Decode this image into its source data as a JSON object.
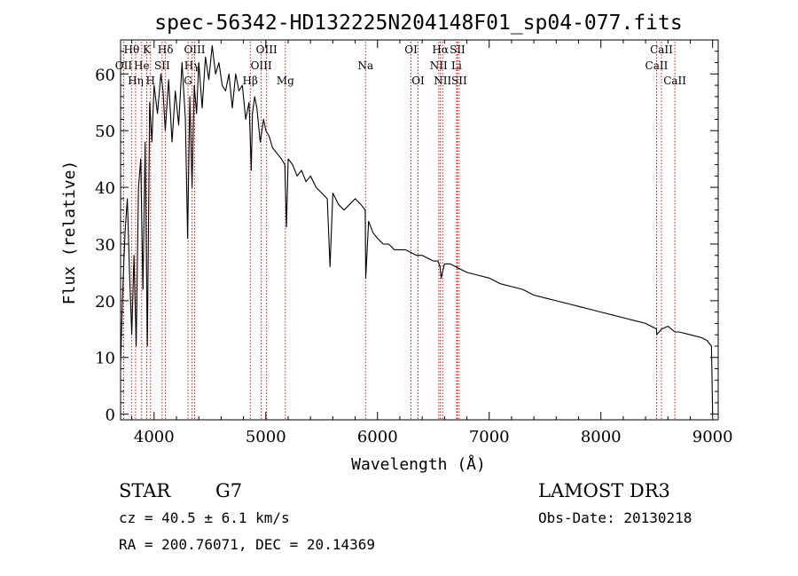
{
  "chart_data": {
    "type": "line",
    "title": "spec-56342-HD132225N204148F01_sp04-077.fits",
    "xlabel": "Wavelength (Å)",
    "ylabel": "Flux (relative)",
    "xlim": [
      3700,
      9050
    ],
    "ylim": [
      -1,
      66
    ],
    "xticks": [
      4000,
      5000,
      6000,
      7000,
      8000,
      9000
    ],
    "yticks": [
      0,
      10,
      20,
      30,
      40,
      50,
      60
    ],
    "grid": false,
    "series": [
      {
        "name": "spectrum",
        "x": [
          3700,
          3720,
          3740,
          3760,
          3780,
          3800,
          3820,
          3840,
          3860,
          3880,
          3900,
          3920,
          3940,
          3960,
          3980,
          4000,
          4030,
          4060,
          4080,
          4100,
          4130,
          4160,
          4190,
          4220,
          4250,
          4280,
          4300,
          4320,
          4340,
          4360,
          4380,
          4400,
          4430,
          4460,
          4490,
          4520,
          4550,
          4580,
          4610,
          4640,
          4670,
          4700,
          4730,
          4760,
          4790,
          4820,
          4850,
          4870,
          4880,
          4900,
          4920,
          4950,
          4980,
          5000,
          5030,
          5060,
          5100,
          5140,
          5170,
          5185,
          5200,
          5240,
          5280,
          5320,
          5360,
          5400,
          5450,
          5500,
          5550,
          5575,
          5600,
          5650,
          5700,
          5750,
          5800,
          5850,
          5890,
          5895,
          5920,
          5960,
          6000,
          6050,
          6100,
          6150,
          6200,
          6250,
          6300,
          6350,
          6400,
          6450,
          6500,
          6540,
          6560,
          6570,
          6600,
          6650,
          6700,
          6750,
          6800,
          6900,
          7000,
          7100,
          7200,
          7300,
          7400,
          7500,
          7600,
          7700,
          7800,
          7900,
          8000,
          8100,
          8200,
          8300,
          8400,
          8498,
          8500,
          8542,
          8600,
          8662,
          8700,
          8800,
          8900,
          8950,
          8990,
          9000
        ],
        "y": [
          9,
          22,
          32,
          38,
          25,
          14,
          28,
          12,
          40,
          45,
          22,
          48,
          12,
          55,
          48,
          58,
          53,
          60,
          57,
          50,
          59,
          48,
          57,
          51,
          62,
          52,
          31,
          56,
          40,
          58,
          53,
          62,
          54,
          63,
          59,
          65,
          60,
          62,
          58,
          57,
          60,
          54,
          60,
          57,
          58,
          52,
          55,
          43,
          53,
          56,
          54,
          48,
          52,
          50,
          49,
          47,
          46,
          45,
          44,
          33,
          45,
          44,
          42,
          43,
          41,
          42,
          40,
          39,
          38,
          26,
          39,
          37,
          36,
          37,
          38,
          37,
          36,
          24,
          34,
          32,
          31,
          30,
          30,
          29,
          29,
          29,
          28.5,
          28,
          28,
          27.5,
          27,
          27,
          26,
          24,
          26.5,
          26.5,
          26,
          25.5,
          25,
          24.5,
          24,
          23,
          22.5,
          22,
          21,
          20.5,
          20,
          19.5,
          19,
          18.5,
          18,
          17.5,
          17,
          16.5,
          16,
          15,
          14,
          15,
          15.5,
          14.5,
          14.5,
          14,
          13.5,
          13,
          12,
          0
        ]
      }
    ],
    "lines": [
      {
        "label": "Hθ",
        "wavelength": 3798,
        "row": 1
      },
      {
        "label": "OII",
        "wavelength": 3727,
        "row": 2
      },
      {
        "label": "Hη",
        "wavelength": 3835,
        "row": 3
      },
      {
        "label": "He",
        "wavelength": 3889,
        "row": 2
      },
      {
        "label": "K",
        "wavelength": 3934,
        "row": 1
      },
      {
        "label": "SII",
        "wavelength": 4072,
        "row": 2
      },
      {
        "label": "H",
        "wavelength": 3968,
        "row": 3
      },
      {
        "label": "Hδ",
        "wavelength": 4102,
        "row": 1
      },
      {
        "label": "G",
        "wavelength": 4304,
        "row": 3
      },
      {
        "label": "Hγ",
        "wavelength": 4340,
        "row": 2
      },
      {
        "label": "OIII",
        "wavelength": 4363,
        "row": 1
      },
      {
        "label": "Hβ",
        "wavelength": 4861,
        "row": 3
      },
      {
        "label": "OIII",
        "wavelength": 4959,
        "row": 2
      },
      {
        "label": "OIII",
        "wavelength": 5007,
        "row": 1
      },
      {
        "label": "Mg",
        "wavelength": 5175,
        "row": 3
      },
      {
        "label": "Na",
        "wavelength": 5893,
        "row": 2
      },
      {
        "label": "OI",
        "wavelength": 6300,
        "row": 1
      },
      {
        "label": "OI",
        "wavelength": 6363,
        "row": 3
      },
      {
        "label": "NII",
        "wavelength": 6548,
        "row": 2
      },
      {
        "label": "Hα",
        "wavelength": 6563,
        "row": 1
      },
      {
        "label": "NII",
        "wavelength": 6583,
        "row": 3
      },
      {
        "label": "SII",
        "wavelength": 6716,
        "row": 1
      },
      {
        "label": "Li",
        "wavelength": 6708,
        "row": 2
      },
      {
        "label": "SII",
        "wavelength": 6731,
        "row": 3
      },
      {
        "label": "CaII",
        "wavelength": 8498,
        "row": 2
      },
      {
        "label": "CaII",
        "wavelength": 8542,
        "row": 1
      },
      {
        "label": "CaII",
        "wavelength": 8662,
        "row": 3
      }
    ]
  },
  "info": {
    "object_type": "STAR",
    "subclass": "G7",
    "survey": "LAMOST DR3",
    "redshift": "cz = 40.5 ± 6.1 km/s",
    "obs_date": "Obs-Date: 20130218",
    "coords": "RA = 200.76071, DEC =  20.14369"
  },
  "colors": {
    "axis": "#000000",
    "spectrum": "#000000",
    "line_marker": "#cc0000",
    "background": "#ffffff"
  }
}
